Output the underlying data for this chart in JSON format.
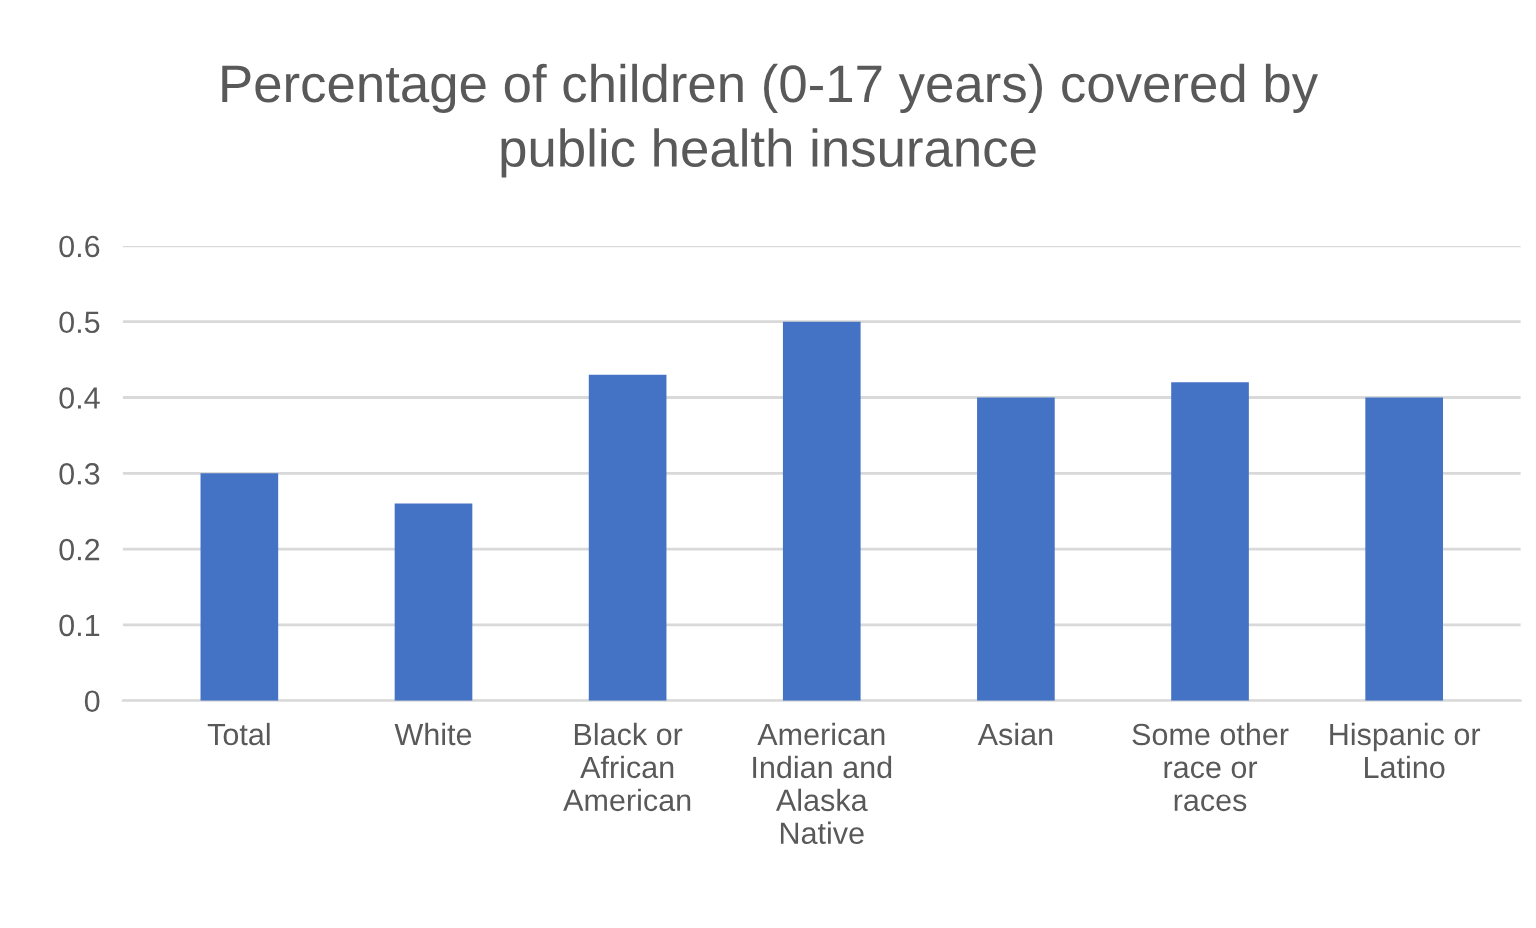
{
  "chart_data": {
    "type": "bar",
    "title": "Percentage of children (0-17 years) covered by public health insurance",
    "categories": [
      "Total",
      "White",
      "Black or African American",
      "American Indian and Alaska Native",
      "Asian",
      "Some other race or races",
      "Hispanic or Latino"
    ],
    "values": [
      0.3,
      0.26,
      0.43,
      0.5,
      0.4,
      0.42,
      0.4
    ],
    "color": "#4472c4",
    "ylim": [
      0,
      0.6
    ],
    "yticks": [
      0,
      0.1,
      0.2,
      0.3,
      0.4,
      0.5,
      0.6
    ],
    "grid": "y",
    "legend": false
  }
}
